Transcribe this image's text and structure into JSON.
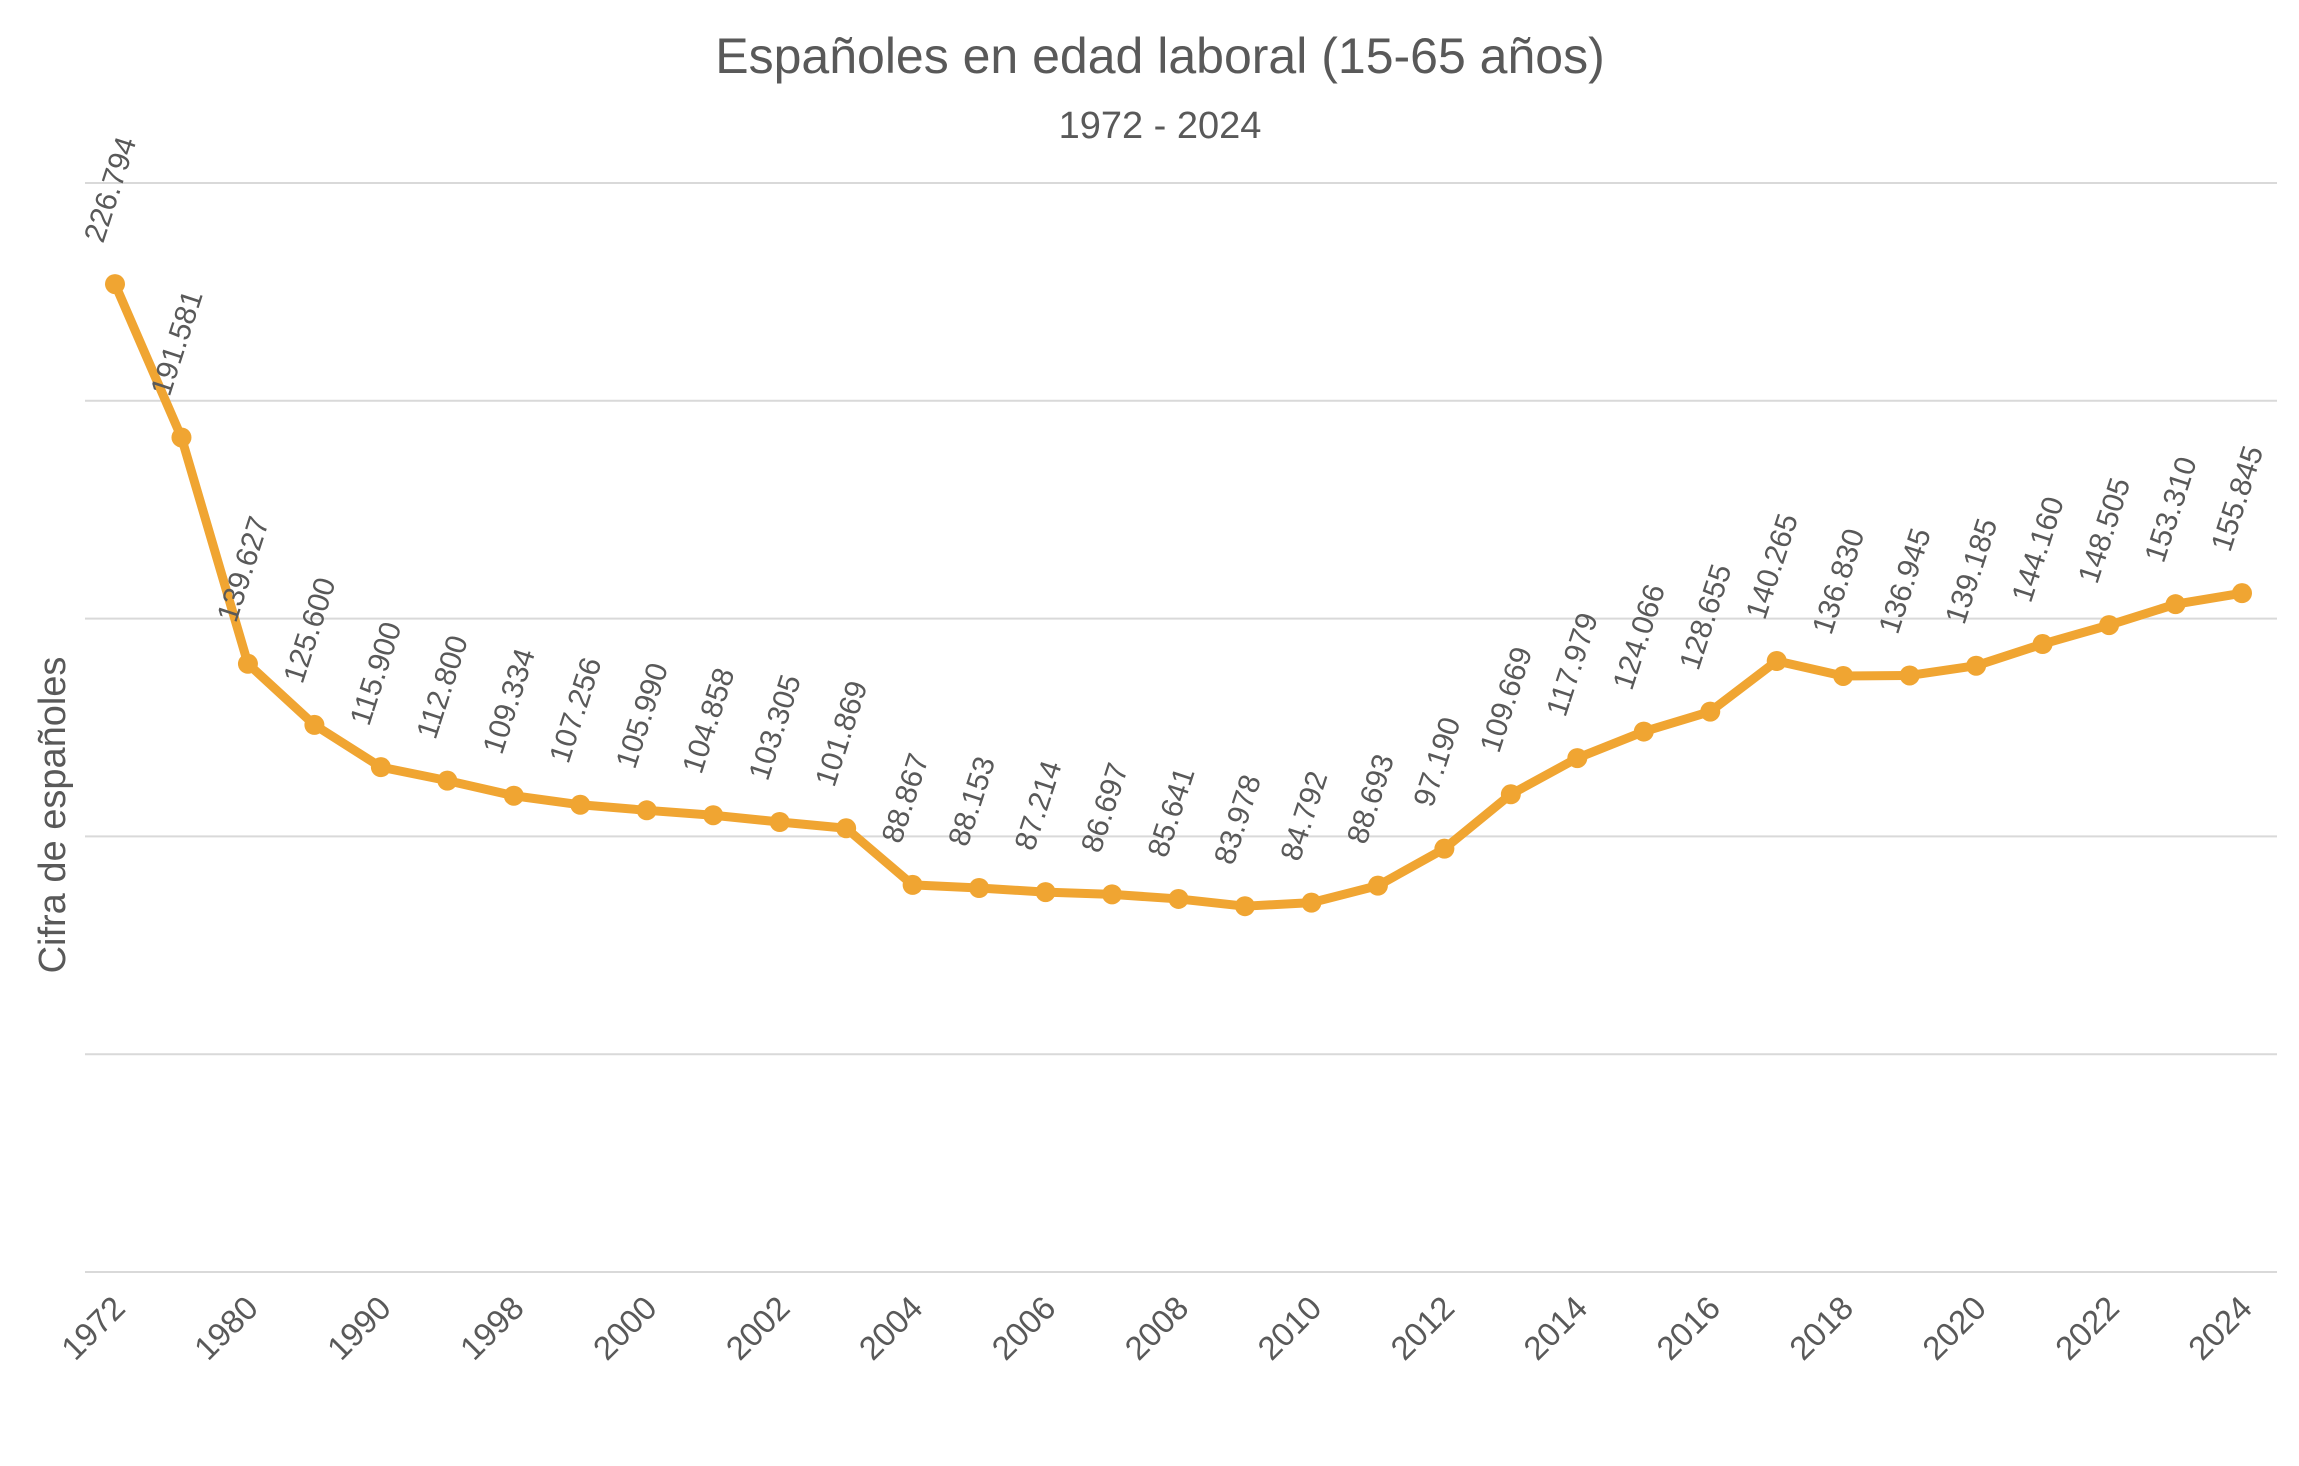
{
  "chart_data": {
    "type": "line",
    "title": "Españoles en edad laboral (15-65 años)",
    "subtitle": "1972 - 2024",
    "y_label": "Cifra de españoles",
    "categories": [
      "1972",
      null,
      "1980",
      null,
      "1990",
      null,
      "1998",
      null,
      "2000",
      null,
      "2002",
      null,
      "2004",
      null,
      "2006",
      null,
      "2008",
      null,
      "2010",
      null,
      "2012",
      null,
      "2014",
      null,
      "2016",
      null,
      "2018",
      null,
      "2020",
      null,
      "2022",
      null,
      "2024"
    ],
    "series": [
      {
        "color": "#f0a532",
        "values": [
          226794,
          191581,
          139627,
          125600,
          115900,
          112800,
          109334,
          107256,
          105990,
          104858,
          103305,
          101869,
          88867,
          88153,
          87214,
          86697,
          85641,
          83978,
          84792,
          88693,
          97190,
          109669,
          117979,
          124066,
          128655,
          140265,
          136830,
          136945,
          139185,
          144160,
          148505,
          153310,
          155845
        ],
        "value_labels": [
          "226.794",
          "191.581",
          "139.627",
          "125.600",
          "115.900",
          "112.800",
          "109.334",
          "107.256",
          "105.990",
          "104.858",
          "103.305",
          "101.869",
          "88.867",
          "88.153",
          "87.214",
          "86.697",
          "85.641",
          "83.978",
          "84.792",
          "88.693",
          "97.190",
          "109.669",
          "117.979",
          "124.066",
          "128.655",
          "140.265",
          "136.830",
          "136.945",
          "139.185",
          "144.160",
          "148.505",
          "153.310",
          "155.845"
        ]
      }
    ],
    "ylim": [
      0,
      250000
    ],
    "yticks": [
      0,
      50000,
      100000,
      150000,
      200000,
      250000
    ],
    "grid": true
  }
}
